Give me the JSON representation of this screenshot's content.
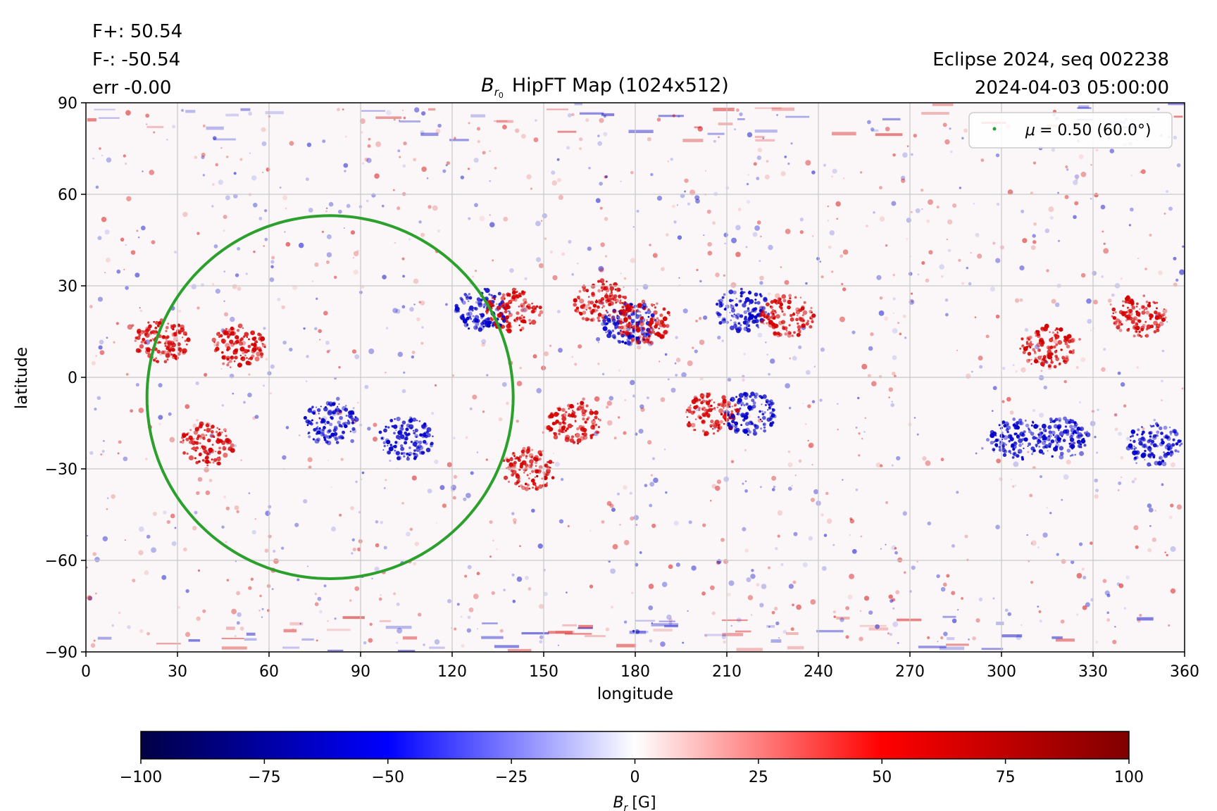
{
  "header": {
    "f_plus": "F+: 50.54",
    "f_minus": "F-: -50.54",
    "err": "err -0.00",
    "title_main": "HipFT Map (1024x512)",
    "title_var": "B",
    "title_sub": "r",
    "title_subsub": "0",
    "right_line1": "Eclipse 2024, seq 002238",
    "right_line2": "2024-04-03 05:00:00"
  },
  "chart_data": {
    "type": "heatmap",
    "title": "B_r0 HipFT Map (1024x512)",
    "xlabel": "longitude",
    "ylabel": "latitude",
    "xlim": [
      0,
      360
    ],
    "ylim": [
      -90,
      90
    ],
    "x_ticks": [
      0,
      30,
      60,
      90,
      120,
      150,
      180,
      210,
      240,
      270,
      300,
      330,
      360
    ],
    "y_ticks": [
      -90,
      -60,
      -30,
      0,
      30,
      60,
      90
    ],
    "grid": true,
    "colormap": "seismic",
    "colorbar": {
      "label_var": "B",
      "label_sub": "r",
      "label_unit": "[G]",
      "range": [
        -100,
        100
      ],
      "ticks": [
        -100,
        -75,
        -50,
        -25,
        0,
        25,
        50,
        75,
        100
      ],
      "tick_labels": [
        "−100",
        "−75",
        "−50",
        "−25",
        "0",
        "25",
        "50",
        "75",
        "100"
      ]
    },
    "legend": {
      "position": "top-right",
      "label_symbol": "μ",
      "label_text": "= 0.50 (60.0°)",
      "color": "#2ca02c"
    },
    "contour": {
      "name": "μ = 0.50 (60.0°)",
      "color": "#2ca02c",
      "center_lon": 80,
      "center_lat": -6,
      "lon_halfwidth": 60,
      "lat_top": 53,
      "lat_bottom": -66
    },
    "regions": [
      {
        "lon": 130,
        "lat": 22,
        "sign": "negative"
      },
      {
        "lon": 140,
        "lat": 22,
        "sign": "positive"
      },
      {
        "lon": 168,
        "lat": 25,
        "sign": "positive"
      },
      {
        "lon": 178,
        "lat": 18,
        "sign": "negative"
      },
      {
        "lon": 183,
        "lat": 18,
        "sign": "positive"
      },
      {
        "lon": 215,
        "lat": 22,
        "sign": "negative"
      },
      {
        "lon": 230,
        "lat": 20,
        "sign": "positive"
      },
      {
        "lon": 205,
        "lat": -12,
        "sign": "positive"
      },
      {
        "lon": 218,
        "lat": -12,
        "sign": "negative"
      },
      {
        "lon": 40,
        "lat": -22,
        "sign": "positive"
      },
      {
        "lon": 80,
        "lat": -15,
        "sign": "negative"
      },
      {
        "lon": 105,
        "lat": -20,
        "sign": "negative"
      },
      {
        "lon": 25,
        "lat": 12,
        "sign": "positive"
      },
      {
        "lon": 50,
        "lat": 10,
        "sign": "positive"
      },
      {
        "lon": 305,
        "lat": -20,
        "sign": "negative"
      },
      {
        "lon": 320,
        "lat": -20,
        "sign": "negative"
      },
      {
        "lon": 350,
        "lat": -22,
        "sign": "negative"
      },
      {
        "lon": 315,
        "lat": 10,
        "sign": "positive"
      },
      {
        "lon": 345,
        "lat": 20,
        "sign": "positive"
      },
      {
        "lon": 160,
        "lat": -15,
        "sign": "positive"
      },
      {
        "lon": 145,
        "lat": -30,
        "sign": "positive"
      }
    ]
  },
  "colors": {
    "positive": "#d40000",
    "negative": "#0000c8",
    "contour": "#2ca02c",
    "grid": "#c8c8c8"
  }
}
